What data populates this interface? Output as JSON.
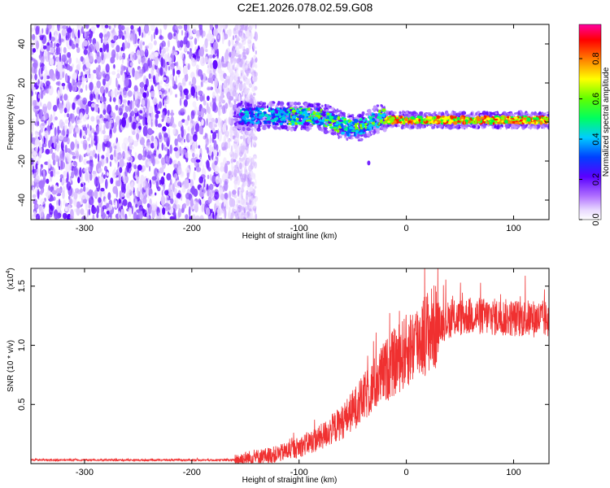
{
  "title": "C2E1.2026.078.02.59.G08",
  "chart_data": [
    {
      "type": "heatmap",
      "name": "spectrogram",
      "xlabel": "Height of straight line (km)",
      "ylabel": "Frequency (Hz)",
      "xlim": [
        -350,
        133
      ],
      "ylim": [
        -50,
        50
      ],
      "xticks": [
        -300,
        -200,
        -100,
        0,
        100
      ],
      "yticks": [
        40,
        20,
        0,
        -20,
        -40
      ],
      "colorbar": {
        "label": "Normalized spectral amplitude",
        "range": [
          0,
          0.97
        ],
        "ticks": [
          0.0,
          0.2,
          0.4,
          0.6,
          0.8
        ]
      },
      "features": {
        "noise_region_x": [
          -350,
          -150
        ],
        "signal_start_x": -160,
        "signal_center_hz": 1,
        "signal_dip": {
          "x": -50,
          "hz": -5
        }
      }
    },
    {
      "type": "line",
      "name": "snr",
      "xlabel": "Height of straight line (km)",
      "ylabel": "SNR (10 * v/v)",
      "scale_label": "(x10",
      "scale_exp": "4",
      "xlim": [
        -350,
        133
      ],
      "ylim": [
        0,
        1.65
      ],
      "xticks": [
        -300,
        -200,
        -100,
        0,
        100
      ],
      "yticks": [
        0.5,
        1.0,
        1.5
      ],
      "ytick_labels": [
        "0.5",
        "1.0",
        "1.5"
      ],
      "series": [
        {
          "name": "SNR",
          "color": "#f03030",
          "profile": [
            {
              "x": -350,
              "y": 0.03
            },
            {
              "x": -160,
              "y": 0.03
            },
            {
              "x": -120,
              "y": 0.08
            },
            {
              "x": -100,
              "y": 0.14
            },
            {
              "x": -80,
              "y": 0.22
            },
            {
              "x": -60,
              "y": 0.35
            },
            {
              "x": -40,
              "y": 0.55
            },
            {
              "x": -20,
              "y": 0.78
            },
            {
              "x": 0,
              "y": 0.95
            },
            {
              "x": 20,
              "y": 1.12
            },
            {
              "x": 40,
              "y": 1.22
            },
            {
              "x": 60,
              "y": 1.25
            },
            {
              "x": 100,
              "y": 1.23
            },
            {
              "x": 133,
              "y": 1.22
            }
          ]
        }
      ]
    }
  ]
}
